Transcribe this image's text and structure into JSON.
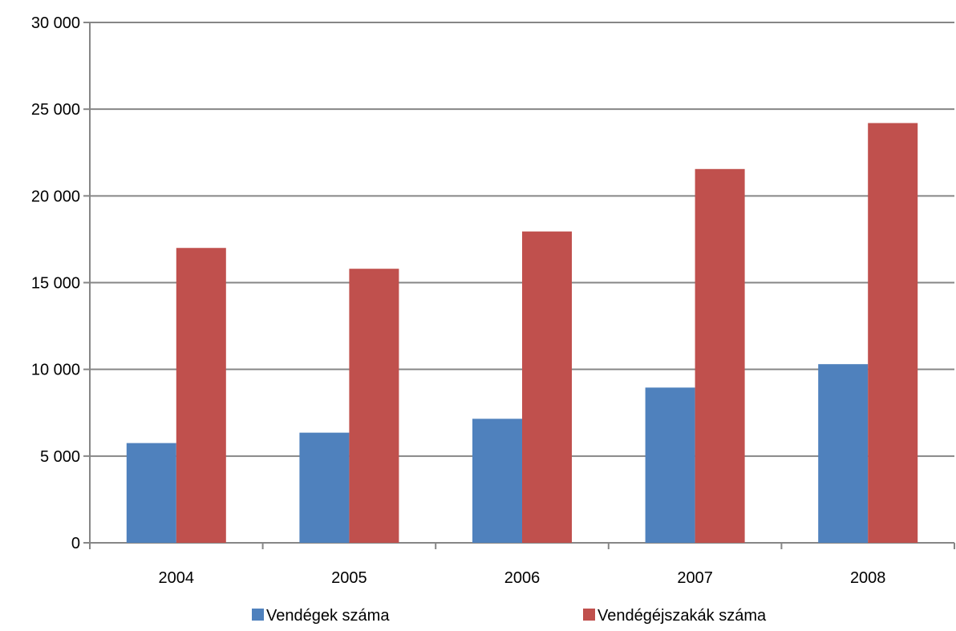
{
  "chart_data": {
    "type": "bar",
    "title": "",
    "categories": [
      "2004",
      "2005",
      "2006",
      "2007",
      "2008"
    ],
    "series": [
      {
        "name": "Vendégek száma",
        "color": "#4F81BD",
        "values": [
          5750,
          6350,
          7150,
          8950,
          10300
        ]
      },
      {
        "name": "Vendégéjszakák száma",
        "color": "#C0504D",
        "values": [
          17000,
          15800,
          17950,
          21550,
          24200
        ]
      }
    ],
    "yticks": [
      "0",
      "5 000",
      "10 000",
      "15 000",
      "20 000",
      "25 000",
      "30 000"
    ],
    "ylim": [
      0,
      30000
    ],
    "xlabel": "",
    "ylabel": "",
    "grid": true,
    "legend_position": "bottom"
  }
}
